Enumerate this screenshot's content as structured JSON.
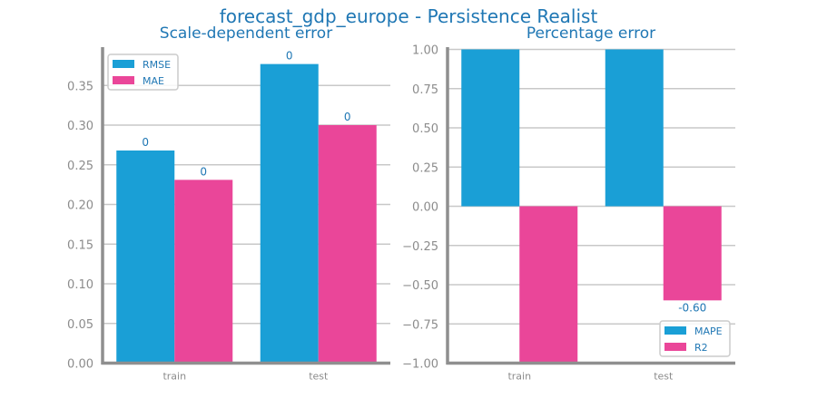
{
  "figure": {
    "suptitle": "forecast_gdp_europe - Persistence Realist"
  },
  "colors": {
    "blue": "#1a9fd6",
    "pink": "#ea4699",
    "grid": "#c8c8c8",
    "axis": "#8f8f8f",
    "text": "#1f77b4",
    "ticktext": "#8c8c8c"
  },
  "chart_data": [
    {
      "type": "bar",
      "title": "Scale-dependent error",
      "categories": [
        "train",
        "test"
      ],
      "series": [
        {
          "name": "RMSE",
          "values": [
            0.268,
            0.377
          ],
          "labels": [
            "0",
            "0"
          ]
        },
        {
          "name": "MAE",
          "values": [
            0.231,
            0.3
          ],
          "labels": [
            "0",
            "0"
          ]
        }
      ],
      "ylim": [
        0,
        0.4
      ],
      "yticks": [
        "0.00",
        "0.05",
        "0.10",
        "0.15",
        "0.20",
        "0.25",
        "0.30",
        "0.35"
      ],
      "legend": "top-left",
      "grid": true
    },
    {
      "type": "bar",
      "title": "Percentage error",
      "categories": [
        "train",
        "test"
      ],
      "series": [
        {
          "name": "MAPE",
          "values": [
            1.0,
            1.0
          ],
          "labels": [
            "",
            ""
          ]
        },
        {
          "name": "R2",
          "values": [
            -1.0,
            -0.6
          ],
          "labels": [
            "",
            "-0.60"
          ]
        }
      ],
      "ylim": [
        -1.0,
        1.0
      ],
      "yticks": [
        "1.00",
        "0.75",
        "0.50",
        "0.25",
        "0.00",
        "−0.25",
        "−0.50",
        "−0.75",
        "−1.00"
      ],
      "legend": "bottom-right",
      "grid": true
    }
  ]
}
